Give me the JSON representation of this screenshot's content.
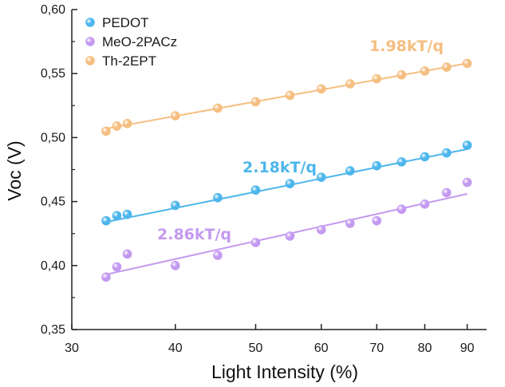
{
  "chart_data": {
    "type": "scatter",
    "title": "",
    "xlabel": "Light Intensity (%)",
    "ylabel": "Voc (V)",
    "xscale": "log",
    "xlim": [
      30,
      95
    ],
    "ylim": [
      0.35,
      0.6
    ],
    "x_ticks": [
      30,
      40,
      50,
      60,
      70,
      80,
      90
    ],
    "x_tick_labels": [
      "30",
      "40",
      "50",
      "60",
      "70",
      "80",
      "90"
    ],
    "y_ticks": [
      0.35,
      0.4,
      0.45,
      0.5,
      0.55,
      0.6
    ],
    "y_tick_labels": [
      "0,35",
      "0,40",
      "0,45",
      "0,50",
      "0,55",
      "0,60"
    ],
    "grid": false,
    "legend_position": "top-left",
    "series": [
      {
        "name": "PEDOT",
        "color": "#4db6ec",
        "x": [
          33,
          34,
          35,
          40,
          45,
          50,
          55,
          60,
          65,
          70,
          75,
          80,
          85,
          90
        ],
        "y": [
          0.435,
          0.439,
          0.44,
          0.447,
          0.453,
          0.459,
          0.464,
          0.469,
          0.474,
          0.478,
          0.481,
          0.485,
          0.488,
          0.494
        ],
        "fit": {
          "x": [
            33,
            90
          ],
          "y": [
            0.434,
            0.491
          ]
        },
        "annotation": "2.18kT/q"
      },
      {
        "name": "MeO-2PACz",
        "color": "#c49af0",
        "x": [
          33,
          34,
          35,
          40,
          45,
          50,
          55,
          60,
          65,
          70,
          75,
          80,
          85,
          90
        ],
        "y": [
          0.391,
          0.399,
          0.409,
          0.4,
          0.408,
          0.418,
          0.423,
          0.428,
          0.433,
          0.435,
          0.444,
          0.448,
          0.457,
          0.465
        ],
        "fit": {
          "x": [
            33,
            90
          ],
          "y": [
            0.393,
            0.456
          ]
        },
        "annotation": "2.86kT/q"
      },
      {
        "name": "Th-2EPT",
        "color": "#f5be80",
        "x": [
          33,
          34,
          35,
          40,
          45,
          50,
          55,
          60,
          65,
          70,
          75,
          80,
          85,
          90
        ],
        "y": [
          0.505,
          0.509,
          0.511,
          0.517,
          0.523,
          0.528,
          0.533,
          0.538,
          0.542,
          0.546,
          0.549,
          0.552,
          0.555,
          0.558
        ],
        "fit": {
          "x": [
            33,
            90
          ],
          "y": [
            0.507,
            0.558
          ]
        },
        "annotation": "1.98kT/q"
      }
    ]
  }
}
